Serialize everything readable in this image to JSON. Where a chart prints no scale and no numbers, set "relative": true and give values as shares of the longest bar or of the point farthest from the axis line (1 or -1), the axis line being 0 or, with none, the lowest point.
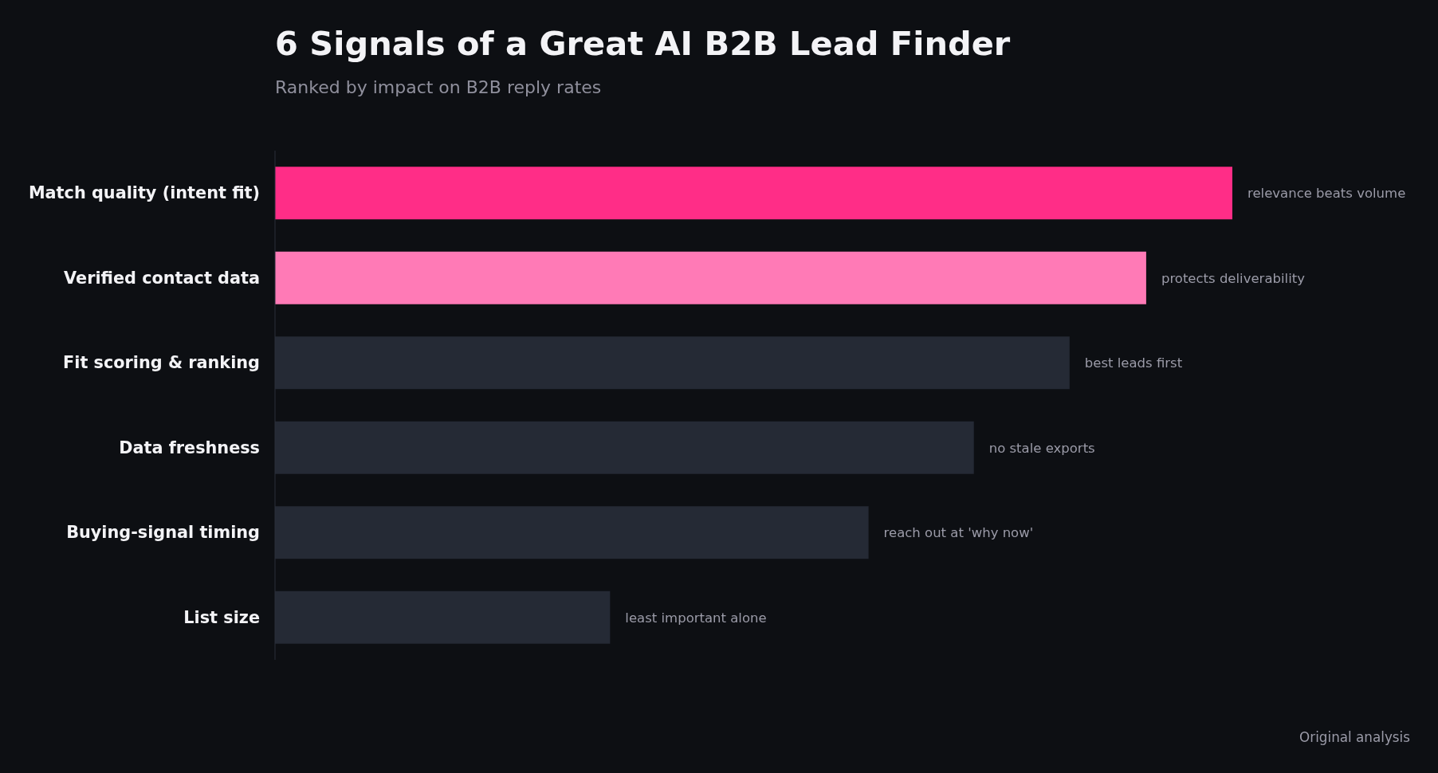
{
  "chart_data": {
    "type": "bar",
    "orientation": "horizontal",
    "relative": true,
    "title": "6 Signals of a Great AI B2B Lead Finder",
    "subtitle": "Ranked by impact on B2B reply rates",
    "categories": [
      "Match quality (intent fit)",
      "Verified contact data",
      "Fit scoring & ranking",
      "Data freshness",
      "Buying-signal timing",
      "List size"
    ],
    "values": [
      1,
      0.91,
      0.83,
      0.73,
      0.62,
      0.35
    ],
    "colors": [
      "#ff2d87",
      "#ff7ab6",
      "#252a35",
      "#252a35",
      "#252a35",
      "#252a35"
    ],
    "annotations": [
      {
        "text": "relevance beats volume",
        "x": 1,
        "y": "Match quality (intent fit)"
      },
      {
        "text": "protects deliverability",
        "x": 0.91,
        "y": "Verified contact data"
      },
      {
        "text": "best leads first",
        "x": 0.83,
        "y": "Fit scoring & ranking"
      },
      {
        "text": "no stale exports",
        "x": 0.73,
        "y": "Data freshness"
      },
      {
        "text": "reach out at 'why now'",
        "x": 0.62,
        "y": "Buying-signal timing"
      },
      {
        "text": "least important alone",
        "x": 0.35,
        "y": "List size"
      },
      "Original analysis"
    ]
  }
}
